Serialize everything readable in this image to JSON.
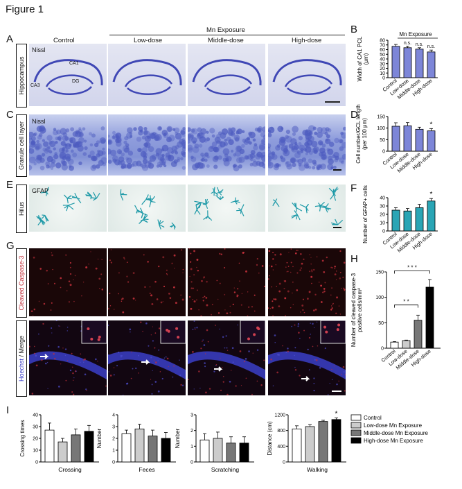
{
  "figure_title": "Figure 1",
  "panels": {
    "A": "A",
    "B": "B",
    "C": "C",
    "D": "D",
    "E": "E",
    "F": "F",
    "G": "G",
    "H": "H",
    "I": "I"
  },
  "header": {
    "exposure": "Mn Exposure",
    "columns": [
      "Control",
      "Low-dose",
      "Middle-dose",
      "High-dose"
    ]
  },
  "row_labels": {
    "hippocampus": "Hippocampus",
    "granule": "Granule cell layer",
    "hilus": "Hilus",
    "caspase_red": "Cleaved Caspase-3",
    "merge_hoechst": "Hoechst",
    "merge_slash": " / ",
    "merge_word": "Merge"
  },
  "stain_labels": {
    "nissl_a": "Nissl",
    "nissl_c": "Nissl",
    "gfap": "GFAP"
  },
  "anatomy": {
    "ca1": "CA1",
    "ca3": "CA3",
    "dg": "DG"
  },
  "colors": {
    "nissl": "#3f47b5",
    "gfap": "#1f9aa8",
    "caspase": "#c0303a",
    "hoechst": "#3b3fc8",
    "f_bar": "#2aa5b5"
  },
  "chart_data": [
    {
      "id": "B",
      "type": "bar",
      "title": "Mn Exposure",
      "ylabel": "Width of CA1 PCL (μm)",
      "ylim": [
        0,
        80
      ],
      "yticks": [
        0,
        10,
        20,
        30,
        40,
        50,
        60,
        70,
        80
      ],
      "categories": [
        "Control",
        "Low-dose",
        "Middle-dose",
        "High-dose"
      ],
      "values": [
        67,
        64,
        61,
        55
      ],
      "errors": [
        4,
        3,
        3,
        4
      ],
      "annotations": [
        "",
        "n.s.",
        "n.s.",
        "n.s."
      ],
      "fill": "#7d86d8"
    },
    {
      "id": "D",
      "type": "bar",
      "ylabel": "Cell number/GCL length (per 100 μm)",
      "ylim": [
        0,
        150
      ],
      "yticks": [
        0,
        50,
        100,
        150
      ],
      "categories": [
        "Control",
        "Low-dose",
        "Middle-dose",
        "High-dose"
      ],
      "values": [
        108,
        110,
        95,
        88
      ],
      "errors": [
        15,
        14,
        9,
        10
      ],
      "annotations": [
        "",
        "",
        "",
        "*"
      ],
      "fill": "#7d86d8"
    },
    {
      "id": "F",
      "type": "bar",
      "ylabel": "Number of GFAP+ cells",
      "ylim": [
        0,
        40
      ],
      "yticks": [
        0,
        10,
        20,
        30,
        40
      ],
      "categories": [
        "Control",
        "Low-dose",
        "Middle-dose",
        "High-dose"
      ],
      "values": [
        25,
        24,
        28,
        36
      ],
      "errors": [
        3,
        3,
        4,
        3
      ],
      "annotations": [
        "",
        "",
        "",
        "*"
      ],
      "fill": "#2aa5b5"
    },
    {
      "id": "H",
      "type": "bar",
      "ylabel": "Number of cleaved caspase-3 positive cells/mm²",
      "ylim": [
        0,
        150
      ],
      "yticks": [
        0,
        50,
        100,
        150
      ],
      "categories": [
        "Control",
        "Low-dose",
        "Middle-dose",
        "High-dose"
      ],
      "values": [
        12,
        15,
        55,
        120
      ],
      "errors": [
        1,
        1,
        10,
        15
      ],
      "fills": [
        "#ffffff",
        "#cccccc",
        "#777777",
        "#000000"
      ],
      "brackets": [
        {
          "from": 0,
          "to": 2,
          "label": "* *"
        },
        {
          "from": 0,
          "to": 3,
          "label": "* * *"
        }
      ]
    },
    {
      "id": "I1",
      "type": "bar",
      "xlabel": "Crossing",
      "ylabel": "Crossing times",
      "ylim": [
        0,
        40
      ],
      "yticks": [
        0,
        10,
        20,
        30,
        40
      ],
      "values": [
        27,
        17,
        23,
        26
      ],
      "errors": [
        6,
        3,
        5,
        5
      ],
      "fills": [
        "#ffffff",
        "#cccccc",
        "#777777",
        "#000000"
      ]
    },
    {
      "id": "I2",
      "type": "bar",
      "xlabel": "Feces",
      "ylabel": "Number",
      "ylim": [
        0,
        4
      ],
      "yticks": [
        0,
        1,
        2,
        3,
        4
      ],
      "values": [
        2.4,
        2.8,
        2.2,
        2.0
      ],
      "errors": [
        0.3,
        0.4,
        0.5,
        0.5
      ],
      "fills": [
        "#ffffff",
        "#cccccc",
        "#777777",
        "#000000"
      ]
    },
    {
      "id": "I3",
      "type": "bar",
      "xlabel": "Scratching",
      "ylabel": "Number",
      "ylim": [
        0,
        3
      ],
      "yticks": [
        0,
        1,
        2,
        3
      ],
      "values": [
        1.4,
        1.5,
        1.2,
        1.2
      ],
      "errors": [
        0.4,
        0.4,
        0.4,
        0.4
      ],
      "fills": [
        "#ffffff",
        "#cccccc",
        "#777777",
        "#000000"
      ]
    },
    {
      "id": "I4",
      "type": "bar",
      "xlabel": "Walking",
      "ylabel": "Distance (cm)",
      "ylim": [
        0,
        1200
      ],
      "yticks": [
        0,
        400,
        800,
        1200
      ],
      "values": [
        840,
        900,
        1030,
        1080
      ],
      "errors": [
        80,
        50,
        30,
        40
      ],
      "annotations": [
        "",
        "",
        "",
        "*"
      ],
      "fills": [
        "#ffffff",
        "#cccccc",
        "#777777",
        "#000000"
      ]
    }
  ],
  "legend": [
    {
      "label": "Control",
      "fill": "#ffffff"
    },
    {
      "label": "Low-dose Mn Exposure",
      "fill": "#cccccc"
    },
    {
      "label": "Middle-dose Mn Exposure",
      "fill": "#777777"
    },
    {
      "label": "High-dose Mn Exposure",
      "fill": "#000000"
    }
  ]
}
